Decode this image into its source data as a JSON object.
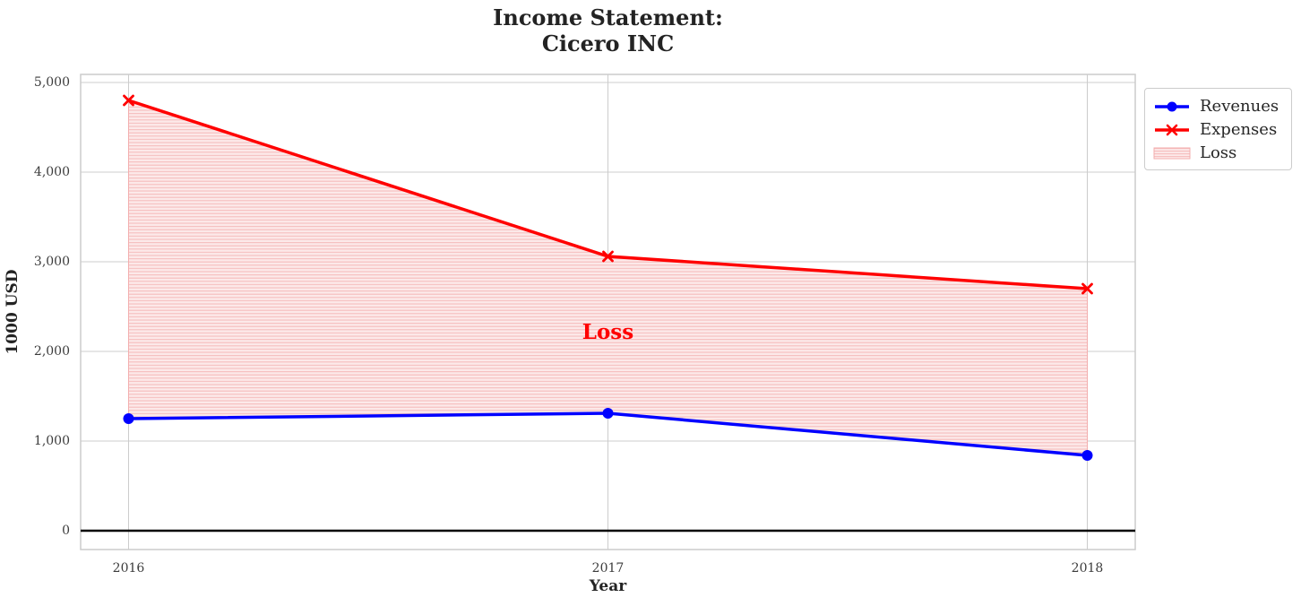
{
  "chart_data": {
    "type": "line",
    "title": "Income Statement:\nCicero INC",
    "title_lines": [
      "Income Statement:",
      "Cicero INC"
    ],
    "xlabel": "Year",
    "ylabel": "1000 USD",
    "x": [
      2016,
      2017,
      2018
    ],
    "xtick_labels": [
      "2016",
      "2017",
      "2018"
    ],
    "yticks": [
      0,
      1000,
      2000,
      3000,
      4000,
      5000
    ],
    "ytick_labels": [
      "0",
      "1,000",
      "2,000",
      "3,000",
      "4,000",
      "5,000"
    ],
    "xlim": [
      2015.9,
      2018.1
    ],
    "ylim": [
      -210,
      5090
    ],
    "grid": true,
    "background_color": "#ffffff",
    "grid_color": "#cccccc",
    "series": [
      {
        "name": "Revenues",
        "values": [
          1250,
          1310,
          840
        ],
        "color": "#0000FF",
        "marker": "circle"
      },
      {
        "name": "Expenses",
        "values": [
          4800,
          3060,
          2700
        ],
        "color": "#FF0000",
        "marker": "x"
      }
    ],
    "loss_fill": {
      "label": "Loss",
      "upper_series": "Expenses",
      "lower_series": "Revenues",
      "face_color": "#FCE9E9",
      "hatch_color": "#F6BDBD",
      "edge_color": "#F3AEAE",
      "hatch": "horizontal-lines"
    },
    "zero_line": {
      "y": 0,
      "color": "#000000"
    },
    "annotation": {
      "text": "Loss",
      "x": 2017,
      "y": 2190,
      "color": "#FF0000"
    },
    "legend": {
      "position": "upper-right",
      "entries": [
        "Revenues",
        "Expenses",
        "Loss"
      ]
    }
  }
}
